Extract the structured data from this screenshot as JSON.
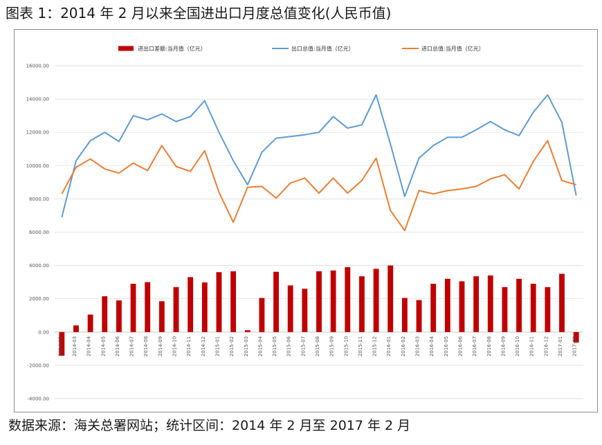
{
  "figure": {
    "title": "图表 1：2014 年 2 月以来全国进出口月度总值变化(人民币值)",
    "source": "数据来源：海关总署网站；统计区间：2014 年 2 月至 2017 年 2 月"
  },
  "colors": {
    "balance": "#c00000",
    "exports": "#5b9bd5",
    "imports": "#ed7d31",
    "grid": "#d9d9d9"
  },
  "chart_data": {
    "type": "bar+line",
    "title": "",
    "ylim": [
      -4000,
      16000
    ],
    "yticks": [
      "-4000.00",
      "-2000.00",
      "0.00",
      "2000.00",
      "4000.00",
      "6000.00",
      "8000.00",
      "10000.00",
      "12000.00",
      "14000.00",
      "16000.00"
    ],
    "grid": true,
    "legend_position": "top",
    "categories": [
      "2014-02",
      "2014-03",
      "2014-04",
      "2014-05",
      "2014-06",
      "2014-07",
      "2014-08",
      "2014-09",
      "2014-10",
      "2014-11",
      "2014-12",
      "2015-01",
      "2015-02",
      "2015-03",
      "2015-04",
      "2015-05",
      "2015-06",
      "2015-07",
      "2015-08",
      "2015-09",
      "2015-10",
      "2015-11",
      "2015-12",
      "2016-01",
      "2016-02",
      "2016-03",
      "2016-04",
      "2016-05",
      "2016-06",
      "2016-07",
      "2016-08",
      "2016-09",
      "2016-10",
      "2016-11",
      "2016-12",
      "2017-01",
      "2017-02"
    ],
    "x_tick_labels": [
      "2014-02",
      "2014-03",
      "2014-04",
      "2014-05",
      "2014-06",
      "2014-07",
      "2014-08",
      "2014-09",
      "2014-10",
      "2014-11",
      "2014-12",
      "2015-01",
      "2015-02",
      "2015-03",
      "2015-04",
      "2015-05",
      "2015-06",
      "2015-07",
      "2015-08",
      "2015-09",
      "2015-10",
      "2015-11",
      "2015-12",
      "2016-01",
      "2016-02",
      "2016-03",
      "2016-04",
      "2016-05",
      "2016-06",
      "2016-07",
      "2016-08",
      "2016-09",
      "2016-10",
      "2016-11",
      "2016-12",
      "2017-01",
      "2017-02"
    ],
    "series": [
      {
        "name": "进出口差额:当月值（亿元）",
        "type": "bar",
        "values": [
          -1420,
          400,
          1050,
          2150,
          1900,
          2900,
          3000,
          1850,
          2700,
          3300,
          2980,
          3600,
          3650,
          110,
          2050,
          3620,
          2800,
          2600,
          3650,
          3700,
          3900,
          3350,
          3800,
          4000,
          2050,
          1920,
          2900,
          3200,
          3050,
          3350,
          3400,
          2700,
          3200,
          2900,
          2700,
          3500,
          -630
        ]
      },
      {
        "name": "出口总值:当月值（亿元）",
        "type": "line",
        "values": [
          6900,
          10300,
          11500,
          12000,
          11450,
          13000,
          12750,
          13100,
          12650,
          12950,
          13900,
          12000,
          10300,
          8850,
          10800,
          11650,
          11750,
          11850,
          12000,
          12950,
          12250,
          12450,
          14250,
          11300,
          8150,
          10450,
          11200,
          11700,
          11700,
          12150,
          12650,
          12150,
          11800,
          13200,
          14250,
          12600,
          8200
        ]
      },
      {
        "name": "进口总值:当月值（亿元）",
        "type": "line",
        "values": [
          8300,
          9900,
          10400,
          9800,
          9550,
          10150,
          9700,
          11200,
          9950,
          9650,
          10900,
          8400,
          6600,
          8700,
          8750,
          8050,
          8950,
          9250,
          8350,
          9250,
          8350,
          9100,
          10450,
          7300,
          6100,
          8500,
          8300,
          8500,
          8600,
          8750,
          9200,
          9450,
          8600,
          10250,
          11500,
          9100,
          8850
        ]
      }
    ]
  }
}
